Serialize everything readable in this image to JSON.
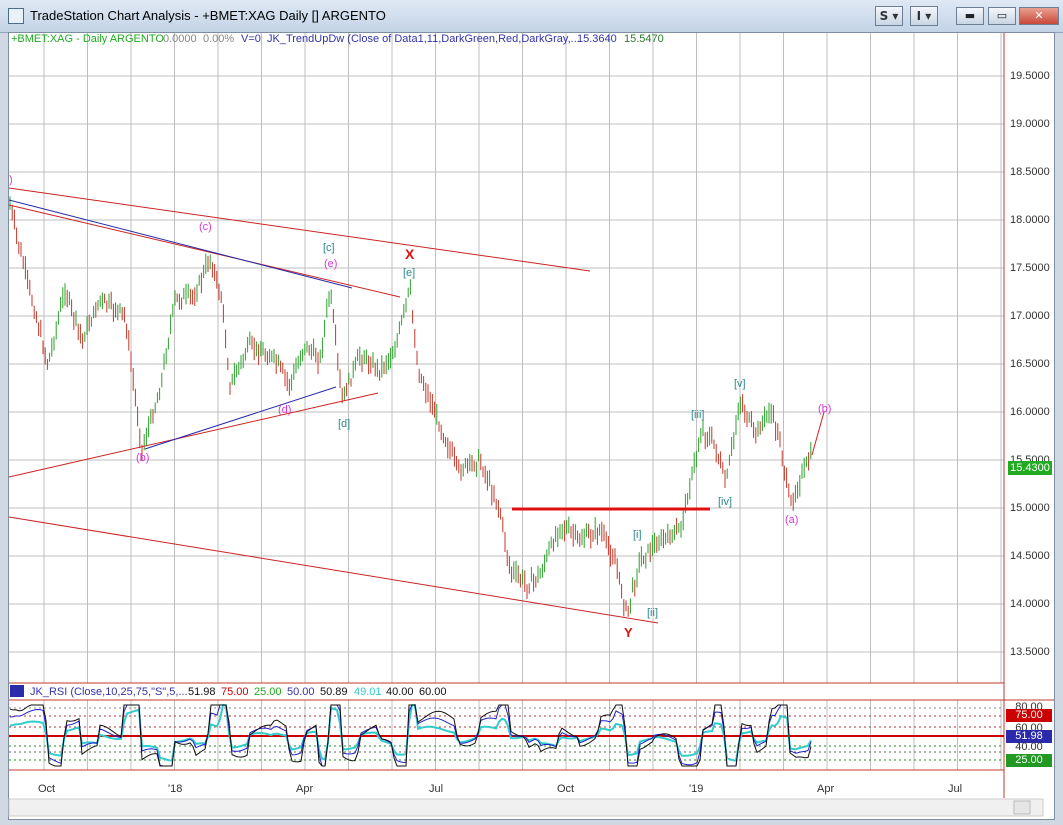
{
  "window": {
    "title": "TradeStation Chart Analysis - +BMET:XAG Daily [] ARGENTO",
    "s_button": "S",
    "i_button": "I",
    "minimize": "▬",
    "maximize": "▭",
    "close": "✕"
  },
  "header": {
    "symbol": "+BMET:XAG - Daily  ARGENTO",
    "change": "0.0000",
    "pct": "0.00%",
    "v": "V=0",
    "indicator": "JK_TrendUpDw (Close of Data1,11,DarkGreen,Red,DarkGray,...",
    "val1": "15.3640",
    "val2": "15.5470"
  },
  "price_axis": {
    "labels": [
      "19.5000",
      "19.0000",
      "18.5000",
      "18.0000",
      "17.5000",
      "17.0000",
      "16.5000",
      "16.0000",
      "15.5000",
      "15.0000",
      "14.5000",
      "14.0000",
      "13.5000"
    ],
    "current": "15.4300"
  },
  "time_axis": {
    "labels": [
      "Oct",
      "'18",
      "Apr",
      "Jul",
      "Oct",
      "'19",
      "Apr",
      "Jul"
    ]
  },
  "rsi": {
    "indicator": "JK_RSI (Close,10,25,75,\"S\",5,...",
    "v1": "51.98",
    "v2": "75.00",
    "v3": "25.00",
    "v4": "50.00",
    "v5": "50.89",
    "v6": "49.01",
    "v7": "40.00",
    "v8": "60.00",
    "tags": {
      "t80": "80.00",
      "t75": "75.00",
      "t60": "60.00",
      "t5198": "51.98",
      "t40": "40.00",
      "t25": "25.00"
    }
  },
  "annotations": {
    "c_left": "(c)",
    "b_left": "(b)",
    "d_left": "(d)",
    "br_c": "[c]",
    "e_pink": "(e)",
    "br_e": "[e]",
    "br_d": "[d]",
    "X": "X",
    "Y": "Y",
    "br_i": "[i]",
    "br_ii": "[ii]",
    "br_iii": "[iii]",
    "br_iv": "[iv]",
    "br_v": "[v]",
    "a_right": "(a)",
    "b_right": "(b)",
    "edge_paren": ")"
  },
  "colors": {
    "up_bar": "#2ca02c",
    "down_bar": "#c0392b",
    "trend_line": "#cc2222",
    "blue_line": "#2a2aaa",
    "wave_teal": "#2a8a8a",
    "wave_pink": "#d63ad6",
    "current_price_bg": "#22aa22"
  }
}
